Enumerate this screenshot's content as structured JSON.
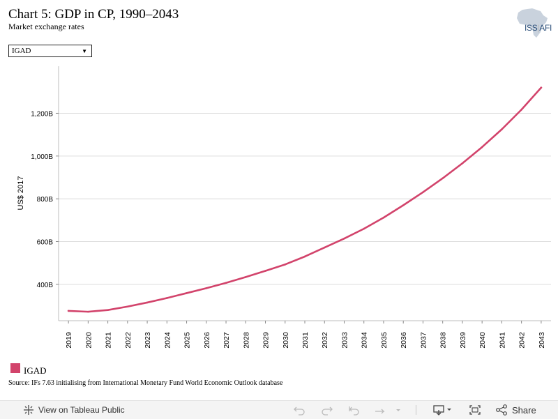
{
  "header": {
    "title": "Chart 5: GDP in CP, 1990–2043",
    "subtitle": "Market exchange rates"
  },
  "logo": {
    "text_left": "ISS",
    "text_sep": "|",
    "text_right": "AFI"
  },
  "filter": {
    "selected": "IGAD"
  },
  "chart_data": {
    "type": "line",
    "title": "Chart 5: GDP in CP, 1990–2043",
    "subtitle": "Market exchange rates",
    "xlabel": "",
    "ylabel": "US$ 2017",
    "x": [
      2019,
      2020,
      2021,
      2022,
      2023,
      2024,
      2025,
      2026,
      2027,
      2028,
      2029,
      2030,
      2031,
      2032,
      2033,
      2034,
      2035,
      2036,
      2037,
      2038,
      2039,
      2040,
      2041,
      2042,
      2043
    ],
    "x_tick_labels": [
      "2019",
      "2020",
      "2021",
      "2022",
      "2023",
      "2024",
      "2025",
      "2026",
      "2027",
      "2028",
      "2029",
      "2030",
      "2031",
      "2032",
      "2033",
      "2034",
      "2035",
      "2036",
      "2037",
      "2038",
      "2039",
      "2040",
      "2041",
      "2042",
      "2043"
    ],
    "y_ticks": [
      400,
      600,
      800,
      1000,
      1200
    ],
    "y_tick_labels": [
      "400B",
      "600B",
      "800B",
      "1,000B",
      "1,200B"
    ],
    "ylim": [
      230,
      1420
    ],
    "units": "billion US$ 2017",
    "grid": true,
    "legend_position": "bottom-left",
    "series": [
      {
        "name": "IGAD",
        "color": "#d2436b",
        "values": [
          276,
          272,
          280,
          296,
          315,
          336,
          359,
          382,
          407,
          434,
          463,
          493,
          530,
          572,
          614,
          660,
          712,
          770,
          831,
          896,
          966,
          1042,
          1125,
          1217,
          1320
        ]
      }
    ]
  },
  "legend": {
    "label": "IGAD",
    "color": "#d2436b"
  },
  "source": "Source: IFs 7.63 initialising from International Monetary Fund World Economic Outlook database",
  "toolbar": {
    "view_label": "View on Tableau Public",
    "share_label": "Share",
    "icons": [
      "tableau-icon",
      "undo-icon",
      "redo-icon",
      "revert-icon",
      "refresh-icon",
      "pause-dropdown-icon",
      "download-icon",
      "fullscreen-icon",
      "share-icon"
    ]
  }
}
